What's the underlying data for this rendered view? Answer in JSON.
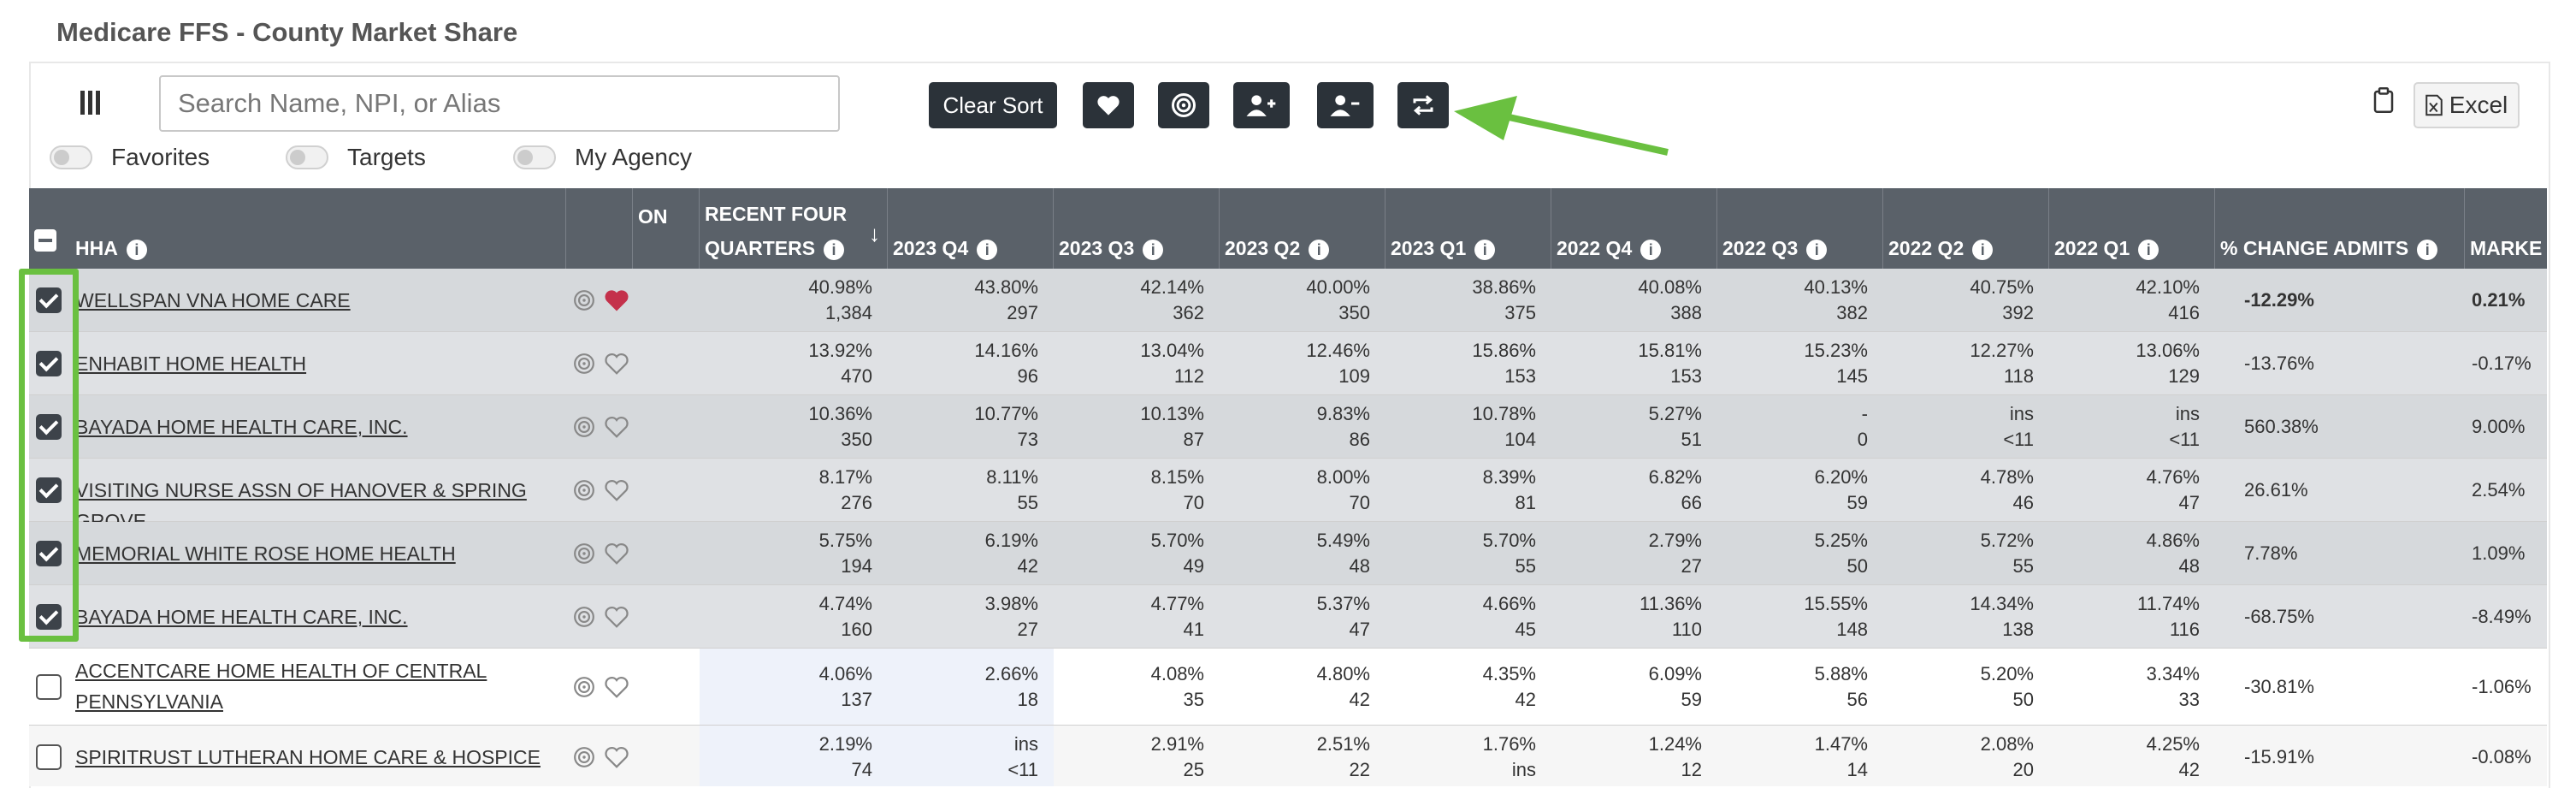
{
  "page": {
    "title": "Medicare FFS - County Market Share"
  },
  "toolbar": {
    "search_placeholder": "Search Name, NPI, or Alias",
    "clear_sort_label": "Clear Sort",
    "excel_label": "Excel",
    "icons": [
      "columns-icon",
      "heart-icon",
      "target-icon",
      "add-user-icon",
      "remove-user-icon",
      "swap-icon",
      "clipboard-icon",
      "excel-file-icon"
    ]
  },
  "filters": [
    {
      "label": "Favorites",
      "on": false
    },
    {
      "label": "Targets",
      "on": false
    },
    {
      "label": "My Agency",
      "on": false
    }
  ],
  "table": {
    "columns": {
      "hha": "HHA",
      "on": "ON",
      "recent_line1": "RECENT FOUR",
      "recent_line2": "QUARTERS",
      "q2023_4": "2023 Q4",
      "q2023_3": "2023 Q3",
      "q2023_2": "2023 Q2",
      "q2023_1": "2023 Q1",
      "q2022_4": "2022 Q4",
      "q2022_3": "2022 Q3",
      "q2022_2": "2022 Q2",
      "q2022_1": "2022 Q1",
      "change": "% CHANGE ADMITS",
      "market": "MARKE"
    },
    "rows": [
      {
        "name": "WELLSPAN VNA HOME CARE",
        "checked": true,
        "favorite": true,
        "vals": [
          [
            "40.98%",
            "1,384"
          ],
          [
            "43.80%",
            "297"
          ],
          [
            "42.14%",
            "362"
          ],
          [
            "40.00%",
            "350"
          ],
          [
            "38.86%",
            "375"
          ],
          [
            "40.08%",
            "388"
          ],
          [
            "40.13%",
            "382"
          ],
          [
            "40.75%",
            "392"
          ],
          [
            "42.10%",
            "416"
          ]
        ],
        "change": "-12.29%",
        "market": "0.21%"
      },
      {
        "name": "ENHABIT HOME HEALTH",
        "checked": true,
        "favorite": false,
        "vals": [
          [
            "13.92%",
            "470"
          ],
          [
            "14.16%",
            "96"
          ],
          [
            "13.04%",
            "112"
          ],
          [
            "12.46%",
            "109"
          ],
          [
            "15.86%",
            "153"
          ],
          [
            "15.81%",
            "153"
          ],
          [
            "15.23%",
            "145"
          ],
          [
            "12.27%",
            "118"
          ],
          [
            "13.06%",
            "129"
          ]
        ],
        "change": "-13.76%",
        "market": "-0.17%"
      },
      {
        "name": "BAYADA HOME HEALTH CARE, INC.",
        "checked": true,
        "favorite": false,
        "vals": [
          [
            "10.36%",
            "350"
          ],
          [
            "10.77%",
            "73"
          ],
          [
            "10.13%",
            "87"
          ],
          [
            "9.83%",
            "86"
          ],
          [
            "10.78%",
            "104"
          ],
          [
            "5.27%",
            "51"
          ],
          [
            "-",
            "0"
          ],
          [
            "ins",
            "<11"
          ],
          [
            "ins",
            "<11"
          ]
        ],
        "change": "560.38%",
        "market": "9.00%"
      },
      {
        "name": "VISITING NURSE ASSN OF HANOVER & SPRING GROVE",
        "checked": true,
        "favorite": false,
        "vals": [
          [
            "8.17%",
            "276"
          ],
          [
            "8.11%",
            "55"
          ],
          [
            "8.15%",
            "70"
          ],
          [
            "8.00%",
            "70"
          ],
          [
            "8.39%",
            "81"
          ],
          [
            "6.82%",
            "66"
          ],
          [
            "6.20%",
            "59"
          ],
          [
            "4.78%",
            "46"
          ],
          [
            "4.76%",
            "47"
          ]
        ],
        "change": "26.61%",
        "market": "2.54%"
      },
      {
        "name": "MEMORIAL WHITE ROSE HOME HEALTH",
        "checked": true,
        "favorite": false,
        "vals": [
          [
            "5.75%",
            "194"
          ],
          [
            "6.19%",
            "42"
          ],
          [
            "5.70%",
            "49"
          ],
          [
            "5.49%",
            "48"
          ],
          [
            "5.70%",
            "55"
          ],
          [
            "2.79%",
            "27"
          ],
          [
            "5.25%",
            "50"
          ],
          [
            "5.72%",
            "55"
          ],
          [
            "4.86%",
            "48"
          ]
        ],
        "change": "7.78%",
        "market": "1.09%"
      },
      {
        "name": "BAYADA HOME HEALTH CARE, INC.",
        "checked": true,
        "favorite": false,
        "vals": [
          [
            "4.74%",
            "160"
          ],
          [
            "3.98%",
            "27"
          ],
          [
            "4.77%",
            "41"
          ],
          [
            "5.37%",
            "47"
          ],
          [
            "4.66%",
            "45"
          ],
          [
            "11.36%",
            "110"
          ],
          [
            "15.55%",
            "148"
          ],
          [
            "14.34%",
            "138"
          ],
          [
            "11.74%",
            "116"
          ]
        ],
        "change": "-68.75%",
        "market": "-8.49%"
      },
      {
        "name": "ACCENTCARE HOME HEALTH OF CENTRAL PENNSYLVANIA",
        "checked": false,
        "favorite": false,
        "vals": [
          [
            "4.06%",
            "137"
          ],
          [
            "2.66%",
            "18"
          ],
          [
            "4.08%",
            "35"
          ],
          [
            "4.80%",
            "42"
          ],
          [
            "4.35%",
            "42"
          ],
          [
            "6.09%",
            "59"
          ],
          [
            "5.88%",
            "56"
          ],
          [
            "5.20%",
            "50"
          ],
          [
            "3.34%",
            "33"
          ]
        ],
        "change": "-30.81%",
        "market": "-1.06%"
      },
      {
        "name": "SPIRITRUST LUTHERAN HOME CARE & HOSPICE",
        "checked": false,
        "favorite": false,
        "vals": [
          [
            "2.19%",
            "74"
          ],
          [
            "ins",
            "<11"
          ],
          [
            "2.91%",
            "25"
          ],
          [
            "2.51%",
            "22"
          ],
          [
            "1.76%",
            "ins"
          ],
          [
            "1.24%",
            "12"
          ],
          [
            "1.47%",
            "14"
          ],
          [
            "2.08%",
            "20"
          ],
          [
            "4.25%",
            "42"
          ]
        ],
        "change": "-15.91%",
        "market": "-0.08%"
      }
    ]
  },
  "colors": {
    "header_bg": "#5a6169",
    "selected_row_bg": "#d6d9dc",
    "selected_row_alt_bg": "#dfe1e4",
    "highlight_col_bg": "#eef2fa",
    "favorite_red": "#c4314b",
    "annotation_green": "#6ac040",
    "button_dark": "#2b3239"
  }
}
